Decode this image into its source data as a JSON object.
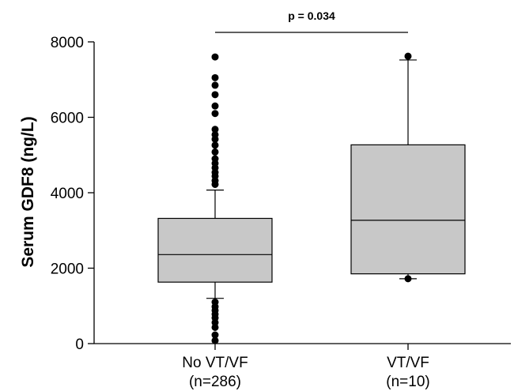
{
  "chart_data": {
    "type": "box",
    "ylabel": "Serum GDF8 (ng/L)",
    "ylim": [
      0,
      8000
    ],
    "yticks": [
      0,
      2000,
      4000,
      6000,
      8000
    ],
    "grid": false,
    "significance": {
      "label": "p = 0.034",
      "between": [
        "No VT/VF",
        "VT/VF"
      ]
    },
    "series": [
      {
        "category": "No VT/VF",
        "n_label": "(n=286)",
        "whisker_low": 1200,
        "q1": 1630,
        "median": 2360,
        "q3": 3320,
        "whisker_high": 4070,
        "outliers": [
          80,
          230,
          430,
          560,
          680,
          780,
          880,
          980,
          1100,
          4220,
          4320,
          4440,
          4540,
          4660,
          4780,
          4900,
          5080,
          5260,
          5420,
          5540,
          5680,
          6100,
          6300,
          6600,
          6850,
          7050,
          7600
        ]
      },
      {
        "category": "VT/VF",
        "n_label": "(n=10)",
        "whisker_low": 1720,
        "q1": 1850,
        "median": 3270,
        "q3": 5270,
        "whisker_high": 7520,
        "outliers": [
          1720,
          7620
        ]
      }
    ],
    "colors": {
      "box_fill": "#c8c8c8",
      "line": "#000000",
      "point": "#000000"
    }
  }
}
